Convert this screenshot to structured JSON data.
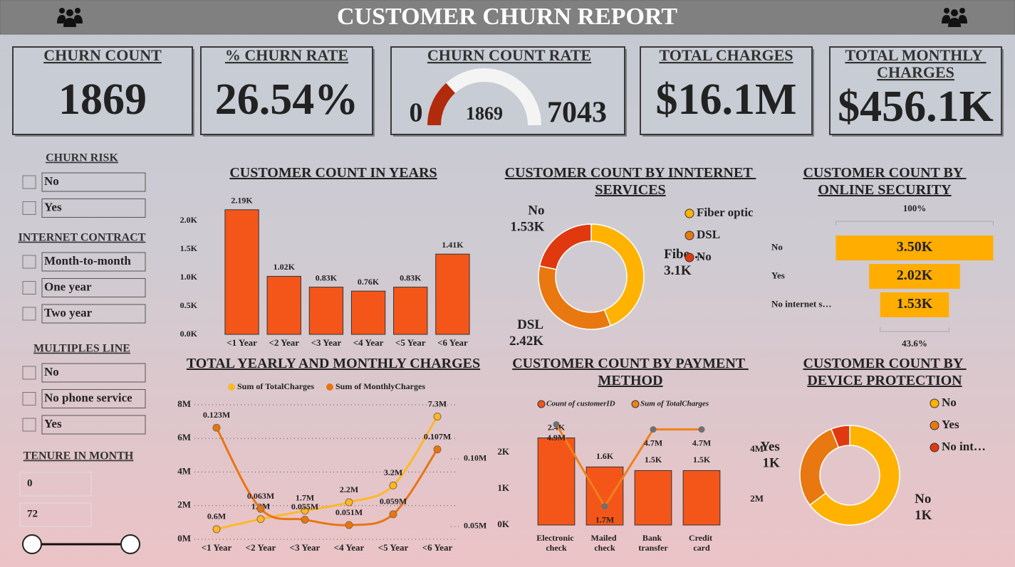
{
  "header": {
    "title": "CUSTOMER CHURN REPORT"
  },
  "kpis": [
    {
      "title": "CHURN COUNT",
      "value": 1869
    },
    {
      "title": "% CHURN RATE",
      "value": "26.54%"
    },
    {
      "title": "TOTAL CHARGES",
      "value": "$16.1M"
    },
    {
      "title": "TOTAL MONTHLY CHARGES",
      "value": "$456.1K"
    }
  ],
  "filters": [
    {
      "title": "CHURN RISK",
      "options": [
        "No",
        "Yes"
      ]
    },
    {
      "title": "INTERNET CONTRACT",
      "options": [
        "Month-to-month",
        "One year",
        "Two year"
      ]
    },
    {
      "title": "MULTIPLES LINE",
      "options": [
        "No",
        "No phone service",
        "Yes"
      ]
    }
  ],
  "tenure": {
    "title": "TENURE IN MONTH",
    "min": 0,
    "max": 72
  },
  "chart_data": [
    {
      "type": "gauge",
      "title": "CHURN COUNT RATE",
      "value": 1869,
      "min": 0,
      "max": 7043,
      "color": "#B02A0C",
      "track_color": "#F4F4F4"
    },
    {
      "type": "bar",
      "title": "CUSTOMER COUNT IN YEARS",
      "categories": [
        "<1 Year",
        "<2 Year",
        "<3 Year",
        "<4 Year",
        "<5 Year",
        "<6 Year"
      ],
      "values": [
        2190,
        1020,
        830,
        760,
        830,
        1410
      ],
      "value_labels": [
        "2.19K",
        "1.02K",
        "0.83K",
        "0.76K",
        "0.83K",
        "1.41K"
      ],
      "color": "#F4561A",
      "ylim": [
        0,
        2200
      ],
      "yticks": [
        {
          "value": 0,
          "label": "0.0K"
        },
        {
          "value": 500,
          "label": "0.5K"
        },
        {
          "value": 1000,
          "label": "1.0K"
        },
        {
          "value": 1500,
          "label": "1.5K"
        },
        {
          "value": 2000,
          "label": "2.0K"
        }
      ],
      "grid": false
    },
    {
      "type": "donut",
      "title": "CUSTOMER COUNT BY INNTERNET SERVICES",
      "categories": [
        "Fiber optic",
        "DSL",
        "No"
      ],
      "slice_labels": [
        "Fibe…",
        "DSL",
        "No"
      ],
      "values": [
        3100,
        2420,
        1530
      ],
      "value_labels": [
        "3.1K",
        "2.42K",
        "1.53K"
      ],
      "colors": [
        "#FFB300",
        "#E8780F",
        "#E0390F"
      ],
      "legend": "right"
    },
    {
      "type": "funnel",
      "title": "CUSTOMER COUNT BY ONLINE SECURITY",
      "categories": [
        "No",
        "Yes",
        "No internet s…"
      ],
      "values": [
        3500,
        2020,
        1530
      ],
      "value_labels": [
        "3.50K",
        "2.02K",
        "1.53K"
      ],
      "color": "#FFAD00",
      "top_label": "100%",
      "bottom_label": "43.6%"
    },
    {
      "type": "line",
      "title": "TOTAL YEARLY AND MONTHLY CHARGES",
      "categories": [
        "<1 Year",
        "<2 Year",
        "<3 Year",
        "<4 Year",
        "<5 Year",
        "<6 Year"
      ],
      "series": [
        {
          "name": "Sum of TotalCharges",
          "color": "#FDB827",
          "values": [
            600000,
            1200000,
            1700000,
            2200000,
            3200000,
            7300000
          ],
          "value_labels": [
            "0.6M",
            "1.2M",
            "1.7M",
            "2.2M",
            "3.2M",
            "7.3M"
          ]
        },
        {
          "name": "Sum of MonthlyCharges",
          "color": "#E87511",
          "axis": "y2",
          "values": [
            123000,
            63000,
            55000,
            51000,
            59000,
            107000
          ],
          "value_labels": [
            "0.123M",
            "0.063M",
            "0.055M",
            "0.051M",
            "0.059M",
            "0.107M"
          ]
        }
      ],
      "ylim": [
        0,
        8000000
      ],
      "yticks": [
        {
          "value": 0,
          "label": "0M"
        },
        {
          "value": 2000000,
          "label": "2M"
        },
        {
          "value": 4000000,
          "label": "4M"
        },
        {
          "value": 6000000,
          "label": "6M"
        },
        {
          "value": 8000000,
          "label": "8M"
        }
      ],
      "y2lim": [
        40500,
        140000
      ],
      "y2ticks": [
        {
          "value": 50000,
          "label": "0.05M"
        },
        {
          "value": 100000,
          "label": "0.10M"
        }
      ],
      "grid": true,
      "legend": "top"
    },
    {
      "type": "combo",
      "title": "CUSTOMER COUNT BY PAYMENT METHOD",
      "categories": [
        "Electronic check",
        "Mailed check",
        "Bank transfer",
        "Credit card"
      ],
      "series": [
        {
          "name": "Count of customerID",
          "type": "bar",
          "color": "#F4561A",
          "values": [
            2400,
            1600,
            1500,
            1500
          ],
          "value_labels": [
            "2.4K",
            "1.6K",
            "1.5K",
            "1.5K"
          ]
        },
        {
          "name": "Sum of TotalCharges",
          "type": "line",
          "axis": "y2",
          "color": "#F08019",
          "marker_color": "#707070",
          "values": [
            4900000,
            1700000,
            4700000,
            4700000
          ],
          "value_labels": [
            "4.9M",
            "1.7M",
            "4.7M",
            "4.7M"
          ]
        }
      ],
      "ylim": [
        0,
        2900
      ],
      "yticks": [
        {
          "value": 0,
          "label": "0K"
        },
        {
          "value": 1000,
          "label": "1K"
        },
        {
          "value": 2000,
          "label": "2K"
        }
      ],
      "y2lim": [
        970000,
        5080000
      ],
      "legend": "top"
    },
    {
      "type": "donut",
      "title": "CUSTOMER COUNT BY DEVICE PROTECTION",
      "categories": [
        "No",
        "Yes",
        "No int…"
      ],
      "values": [
        1211,
        545,
        113
      ],
      "value_labels": [
        "1K",
        "1K",
        null
      ],
      "colors": [
        "#FFB300",
        "#E8780F",
        "#E0390F"
      ],
      "legend": "right",
      "ylim": [
        0,
        6000000
      ],
      "yticks": [
        {
          "value": 2000000,
          "label": "2M"
        },
        {
          "value": 4000000,
          "label": "4M"
        }
      ]
    }
  ]
}
